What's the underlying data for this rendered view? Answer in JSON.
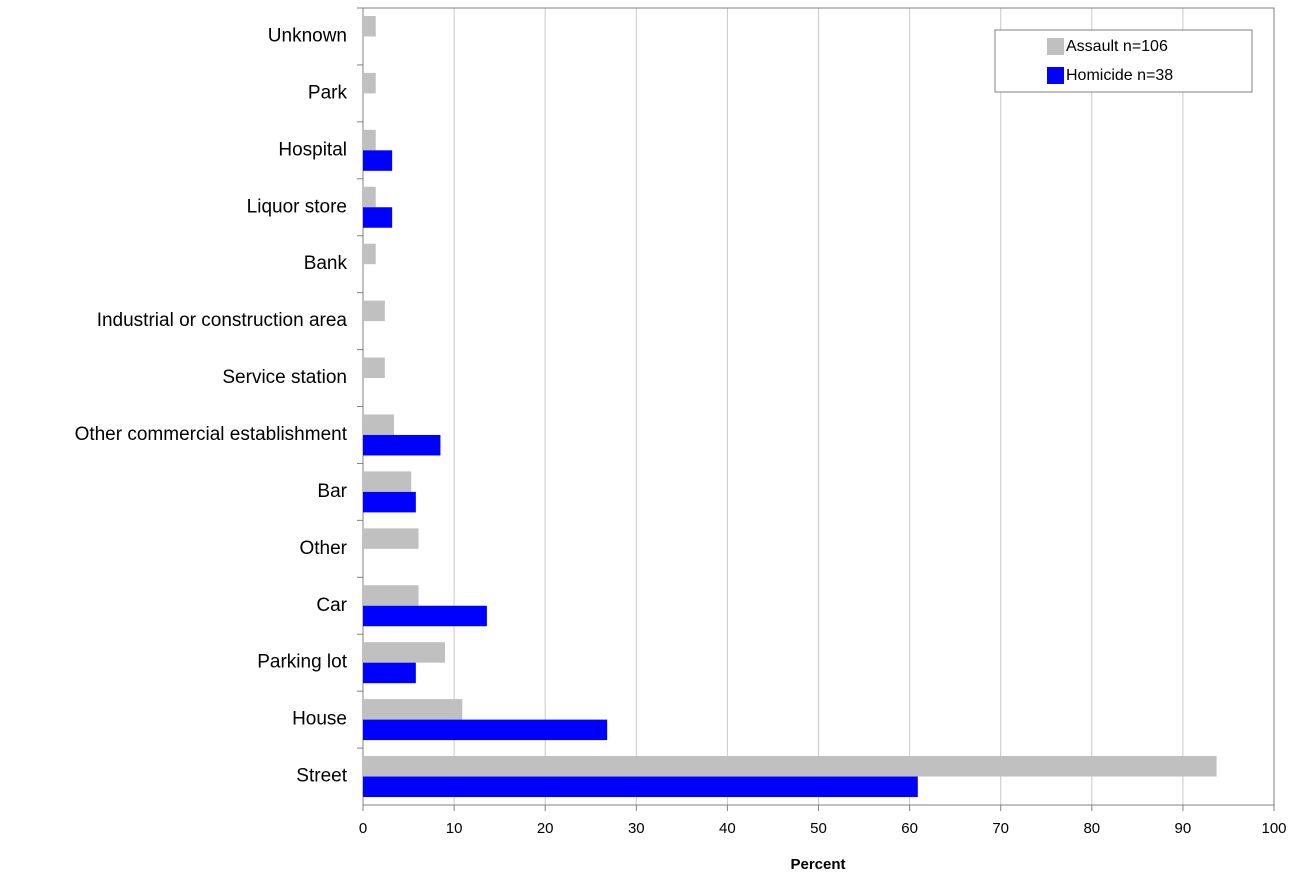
{
  "chart_data": {
    "type": "barh",
    "xlabel": "Percent",
    "categories": [
      "Unknown",
      "Park",
      "Hospital",
      "Liquor store",
      "Bank",
      "Industrial or construction area",
      "Service station",
      "Other commercial establishment",
      "Bar",
      "Other",
      "Car",
      "Parking lot",
      "House",
      "Street"
    ],
    "series": [
      {
        "name": "Assault n=106",
        "color": "#c0c0c0",
        "values": [
          1.4,
          1.4,
          1.4,
          1.4,
          1.4,
          2.4,
          2.4,
          3.4,
          5.3,
          6.1,
          6.1,
          9.0,
          10.9,
          93.7
        ]
      },
      {
        "name": "Homicide n=38",
        "color": "#0000ff",
        "values": [
          0,
          0,
          3.2,
          3.2,
          0,
          0,
          0,
          8.5,
          5.8,
          0,
          13.6,
          5.8,
          26.8,
          60.9
        ]
      }
    ],
    "xlim": [
      0,
      100
    ],
    "xticks": [
      0,
      10,
      20,
      30,
      40,
      50,
      60,
      70,
      80,
      90,
      100
    ],
    "grid": true,
    "legend": "upper right"
  }
}
